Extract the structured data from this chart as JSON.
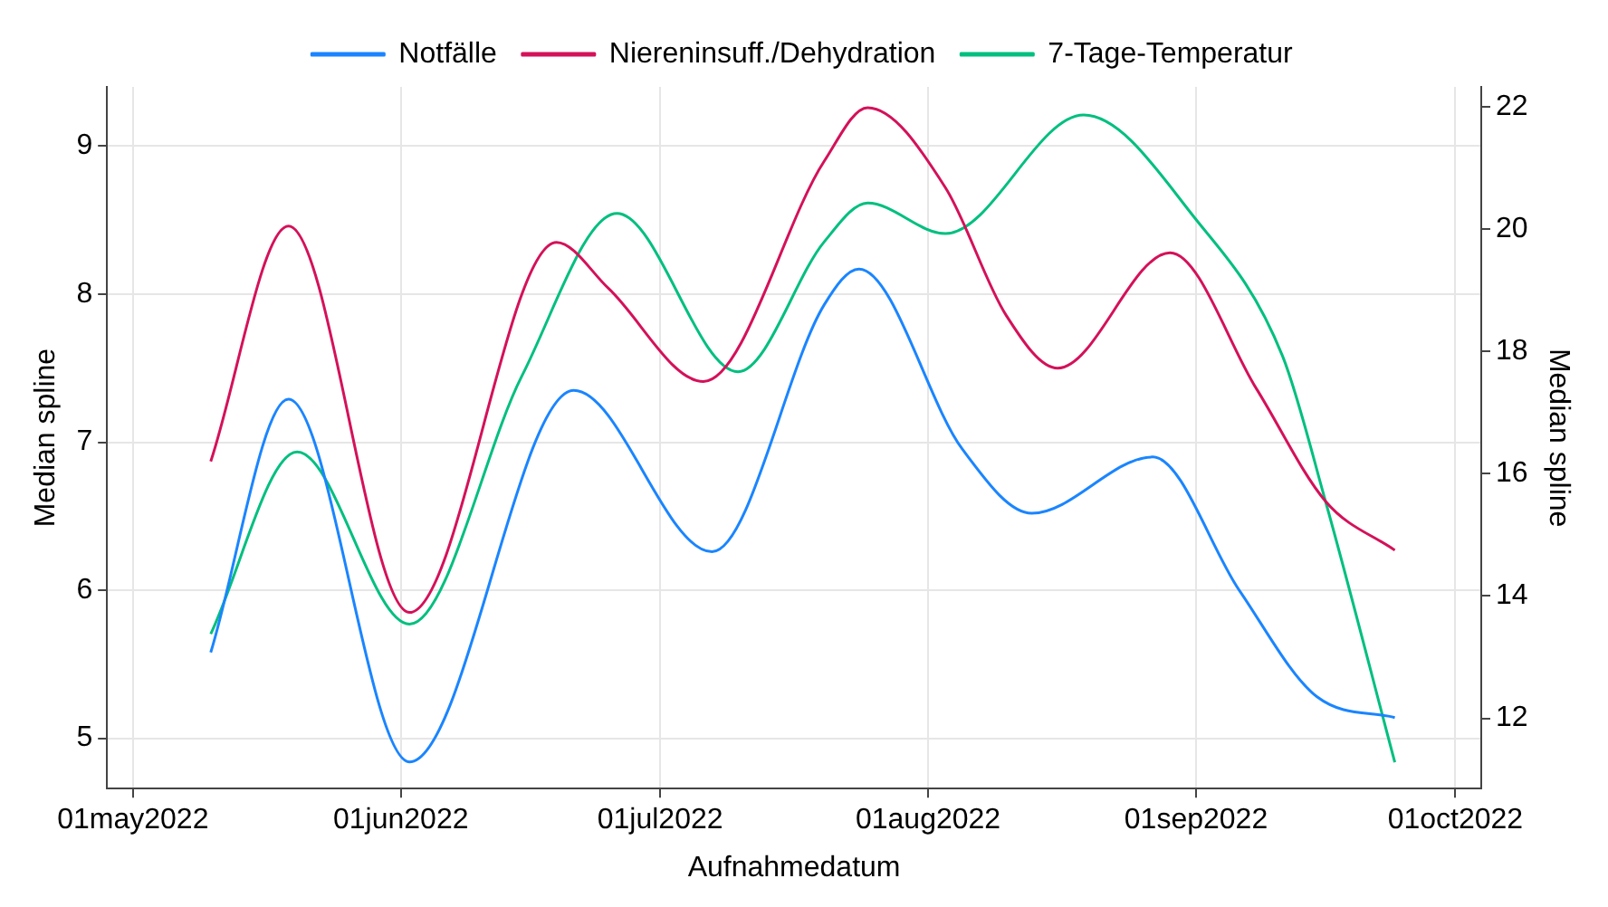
{
  "chart_data": {
    "type": "line",
    "xlabel": "Aufnahmedatum",
    "ylabel": "Median spline",
    "y2label": "Median spline",
    "xlim": [
      "2022-04-28",
      "2022-10-04"
    ],
    "xticks": [
      {
        "value": "2022-05-01",
        "label": "01may2022"
      },
      {
        "value": "2022-06-01",
        "label": "01jun2022"
      },
      {
        "value": "2022-07-01",
        "label": "01jul2022"
      },
      {
        "value": "2022-08-01",
        "label": "01aug2022"
      },
      {
        "value": "2022-09-01",
        "label": "01sep2022"
      },
      {
        "value": "2022-10-01",
        "label": "01oct2022"
      }
    ],
    "ylim": [
      4.66,
      9.4
    ],
    "yticks": [
      5,
      6,
      7,
      8,
      9
    ],
    "y2lim": [
      10.85,
      22.33
    ],
    "y2ticks": [
      12,
      14,
      16,
      18,
      20,
      22
    ],
    "grid": true,
    "legend": "top",
    "marker": "none",
    "line_style": "solid",
    "series": [
      {
        "name": "Notfälle",
        "color": "#1a85ff",
        "x": [
          "2022-05-10",
          "2022-05-19",
          "2022-06-02",
          "2022-06-21",
          "2022-07-07",
          "2022-07-20",
          "2022-07-24",
          "2022-08-05",
          "2022-08-13",
          "2022-08-27",
          "2022-09-06",
          "2022-09-15",
          "2022-09-24"
        ],
        "values": [
          5.58,
          7.29,
          4.84,
          7.35,
          6.26,
          7.93,
          8.17,
          6.95,
          6.52,
          6.9,
          6.0,
          5.28,
          5.14
        ]
      },
      {
        "name": "Niereninsuff./Dehydration",
        "color": "#d41159",
        "x": [
          "2022-05-10",
          "2022-05-19",
          "2022-06-02",
          "2022-06-19",
          "2022-06-25",
          "2022-07-06",
          "2022-07-20",
          "2022-07-25",
          "2022-08-03",
          "2022-08-10",
          "2022-08-16",
          "2022-08-29",
          "2022-09-08",
          "2022-09-16",
          "2022-09-24"
        ],
        "values": [
          6.87,
          8.46,
          5.85,
          8.35,
          8.04,
          7.41,
          8.9,
          9.26,
          8.72,
          7.86,
          7.5,
          8.28,
          7.36,
          6.6,
          6.27
        ]
      },
      {
        "name": "7-Tage-Temperatur",
        "color": "#00bf7f",
        "axis": "y2",
        "x": [
          "2022-05-10",
          "2022-05-20",
          "2022-06-02",
          "2022-06-15",
          "2022-06-26",
          "2022-07-10",
          "2022-07-20",
          "2022-07-25",
          "2022-08-03",
          "2022-08-19",
          "2022-09-01",
          "2022-09-11",
          "2022-09-16",
          "2022-09-24"
        ],
        "values": [
          13.38,
          16.36,
          13.54,
          17.6,
          20.26,
          17.67,
          19.8,
          20.43,
          19.93,
          21.87,
          20.16,
          17.93,
          15.54,
          11.28
        ]
      }
    ]
  }
}
